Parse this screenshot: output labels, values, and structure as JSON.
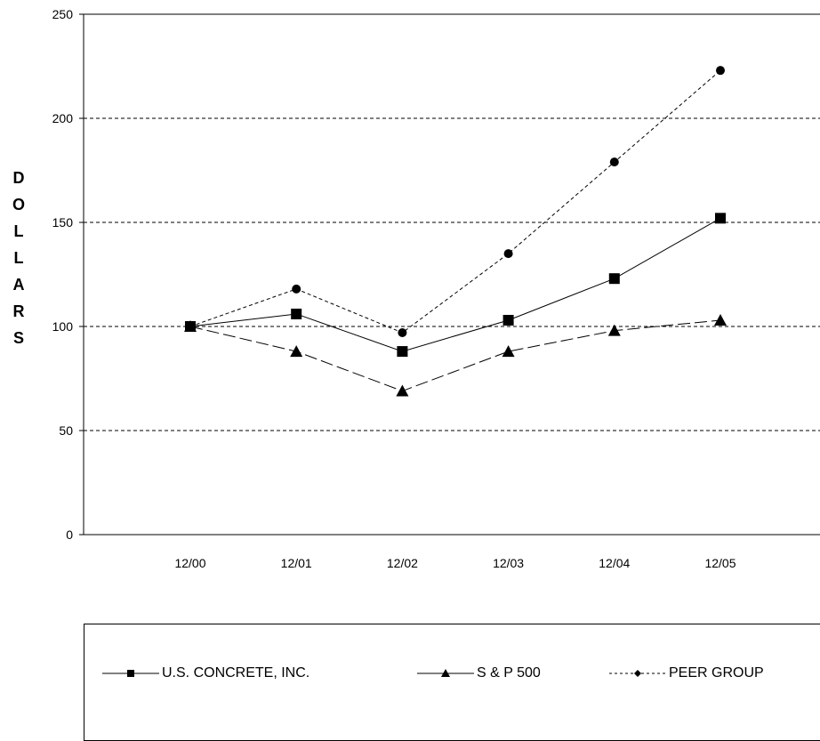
{
  "chart_data": {
    "type": "line",
    "categories": [
      "12/00",
      "12/01",
      "12/02",
      "12/03",
      "12/04",
      "12/05"
    ],
    "ylabel": "DOLLARS",
    "ylim": [
      0,
      250
    ],
    "yticks": [
      0,
      50,
      100,
      150,
      200,
      250
    ],
    "grid": "horizontal dashed at 50, 100, 150, 200",
    "legend_position": "bottom",
    "series": [
      {
        "name": "U.S. CONCRETE, INC.",
        "values": [
          100,
          106,
          88,
          103,
          123,
          152
        ],
        "marker": "square",
        "line": "solid",
        "color": "#000000"
      },
      {
        "name": "S & P 500",
        "values": [
          100,
          88,
          69,
          88,
          98,
          103
        ],
        "marker": "triangle",
        "line": "long-dash",
        "color": "#000000"
      },
      {
        "name": "PEER GROUP",
        "values": [
          100,
          118,
          97,
          135,
          179,
          223
        ],
        "marker": "circle",
        "line": "short-dash",
        "color": "#000000"
      }
    ]
  }
}
